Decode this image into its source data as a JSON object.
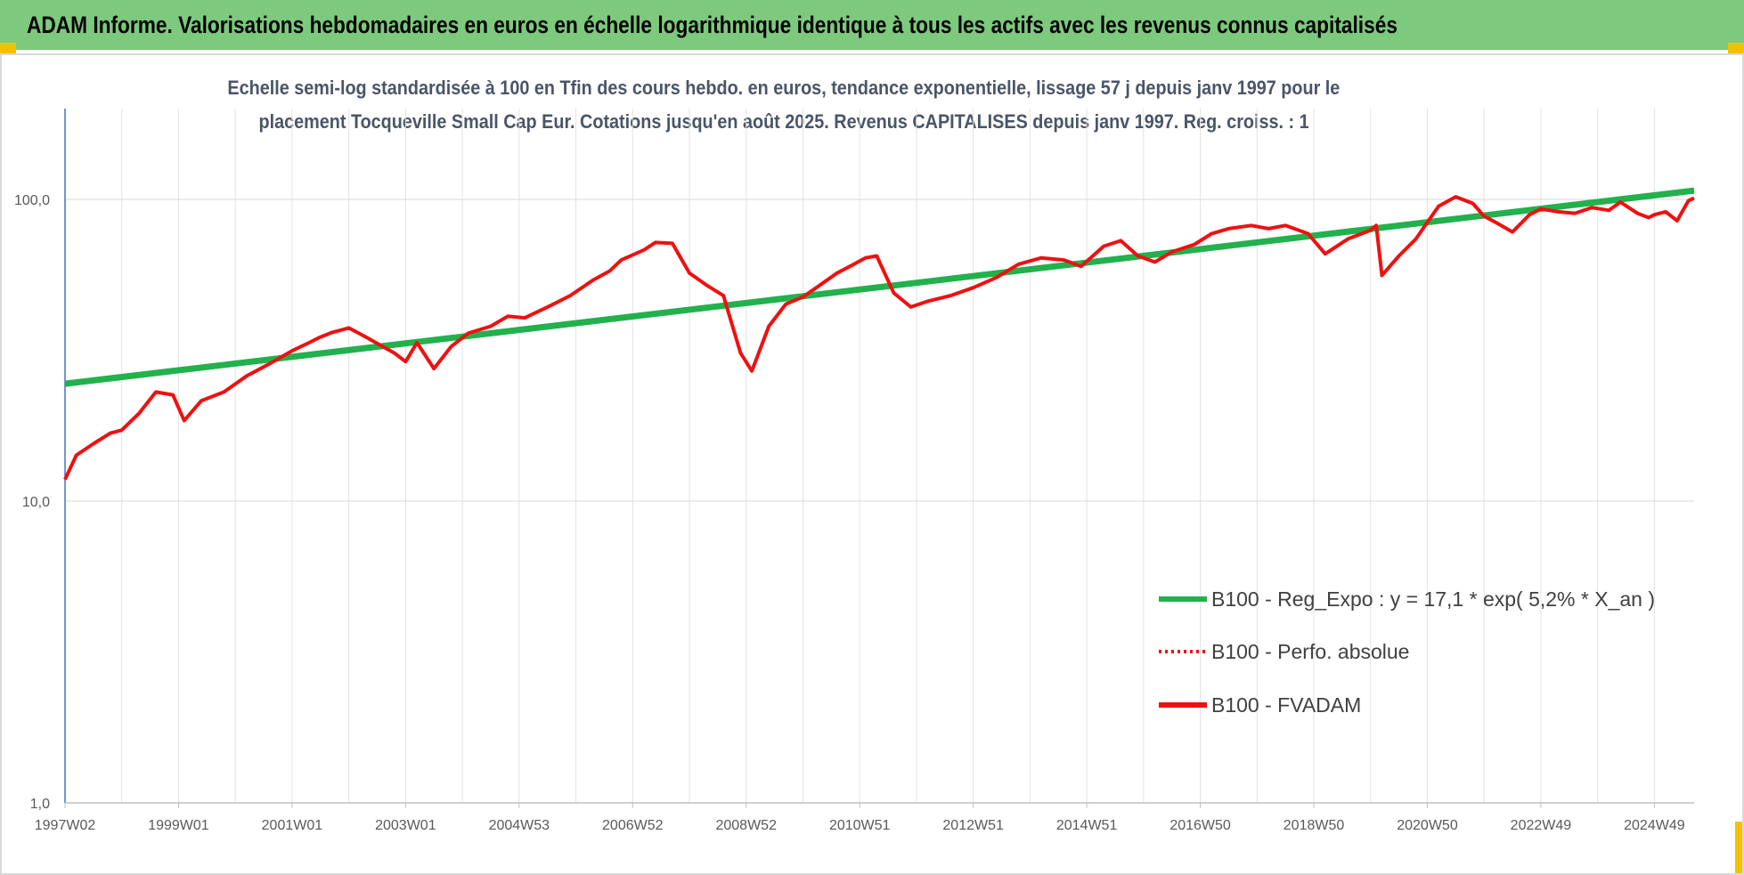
{
  "header": {
    "title": "ADAM Informe. Valorisations hebdomadaires en euros en échelle logarithmique identique à tous les actifs avec les revenus connus capitalisés"
  },
  "colors": {
    "header_bg": "#7dc97d",
    "regression": "#22b14c",
    "fvadam": "#ee1111",
    "corner": "#f2c200"
  },
  "chart_data": {
    "type": "line",
    "title_line1": "Echelle semi-log standardisée à 100 en Tfin des cours hebdo. en euros, tendance exponentielle, lissage 57 j depuis janv 1997 pour le",
    "title_line2": "placement Tocqueville Small Cap Eur. Cotations jusqu'en août 2025. Revenus CAPITALISES depuis janv 1997. Reg. croiss. : 1",
    "y_scale": "log",
    "ylim": [
      1,
      200
    ],
    "y_ticks": [
      {
        "value": 1,
        "label": "1,0"
      },
      {
        "value": 10,
        "label": "10,0"
      },
      {
        "value": 100,
        "label": "100,0"
      }
    ],
    "xlim": [
      1997.0,
      2025.7
    ],
    "x_ticks": [
      {
        "t": 1997.0,
        "label": "1997W02"
      },
      {
        "t": 1999.0,
        "label": "1999W01"
      },
      {
        "t": 2001.0,
        "label": "2001W01"
      },
      {
        "t": 2003.0,
        "label": "2003W01"
      },
      {
        "t": 2005.0,
        "label": "2004W53"
      },
      {
        "t": 2007.0,
        "label": "2006W52"
      },
      {
        "t": 2009.0,
        "label": "2008W52"
      },
      {
        "t": 2011.0,
        "label": "2010W51"
      },
      {
        "t": 2013.0,
        "label": "2012W51"
      },
      {
        "t": 2015.0,
        "label": "2014W51"
      },
      {
        "t": 2017.0,
        "label": "2016W50"
      },
      {
        "t": 2019.0,
        "label": "2018W50"
      },
      {
        "t": 2021.0,
        "label": "2020W50"
      },
      {
        "t": 2023.0,
        "label": "2022W49"
      },
      {
        "t": 2025.0,
        "label": "2024W49"
      }
    ],
    "grid": true,
    "legend_position": "bottom-right",
    "series": [
      {
        "name": "B100 - Reg_Expo : y = 17,1 * exp( 5,2% *  X_an )",
        "color": "#22b14c",
        "style": "solid",
        "x": [
          1997.0,
          2025.7
        ],
        "y": [
          24.5,
          107
        ]
      },
      {
        "name": "B100 - Perfo. absolue",
        "color": "#ee1111",
        "style": "dotted",
        "x": [],
        "y": []
      },
      {
        "name": "B100 - FVADAM",
        "color": "#ee1111",
        "style": "solid",
        "x": [
          1997.0,
          1997.2,
          1997.5,
          1997.8,
          1998.0,
          1998.3,
          1998.6,
          1998.9,
          1999.1,
          1999.4,
          1999.8,
          2000.2,
          2000.6,
          2001.0,
          2001.3,
          2001.5,
          2001.7,
          2002.0,
          2002.3,
          2002.6,
          2002.8,
          2003.0,
          2003.2,
          2003.5,
          2003.8,
          2004.1,
          2004.5,
          2004.8,
          2005.1,
          2005.5,
          2005.9,
          2006.3,
          2006.6,
          2006.8,
          2007.2,
          2007.4,
          2007.7,
          2008.0,
          2008.3,
          2008.6,
          2008.9,
          2009.1,
          2009.4,
          2009.7,
          2010.0,
          2010.3,
          2010.6,
          2010.9,
          2011.1,
          2011.3,
          2011.6,
          2011.9,
          2012.2,
          2012.6,
          2013.0,
          2013.4,
          2013.8,
          2014.2,
          2014.6,
          2014.9,
          2015.3,
          2015.6,
          2015.9,
          2016.2,
          2016.5,
          2016.9,
          2017.2,
          2017.5,
          2017.9,
          2018.2,
          2018.5,
          2018.9,
          2019.2,
          2019.6,
          2020.0,
          2020.1,
          2020.2,
          2020.5,
          2020.8,
          2021.0,
          2021.2,
          2021.5,
          2021.8,
          2022.0,
          2022.2,
          2022.5,
          2022.8,
          2023.0,
          2023.3,
          2023.6,
          2023.9,
          2024.2,
          2024.4,
          2024.7,
          2024.9,
          2025.0,
          2025.2,
          2025.4,
          2025.6,
          2025.7
        ],
        "y": [
          11.8,
          14.2,
          15.5,
          16.8,
          17.2,
          19.5,
          23,
          22.5,
          18.5,
          21.5,
          23,
          26,
          28.5,
          31.5,
          33.5,
          35,
          36.2,
          37.5,
          35,
          32.5,
          31,
          29,
          33.5,
          27.5,
          32.5,
          36,
          38,
          41,
          40.5,
          44,
          48,
          54,
          58,
          63,
          68,
          72,
          71.5,
          57,
          52,
          48,
          31,
          27,
          38,
          45,
          47.5,
          52,
          57,
          61,
          64,
          65,
          49,
          44,
          46,
          48,
          51,
          55,
          61,
          64,
          63,
          60,
          70,
          73,
          65,
          62,
          67,
          71,
          77,
          80,
          82,
          80,
          82,
          77,
          66,
          74,
          79,
          82,
          56,
          65,
          74,
          84,
          95,
          102,
          97,
          88,
          84,
          78,
          89,
          93,
          91,
          90,
          94,
          92,
          98,
          90,
          87,
          89,
          91,
          85,
          99,
          101
        ]
      }
    ]
  }
}
